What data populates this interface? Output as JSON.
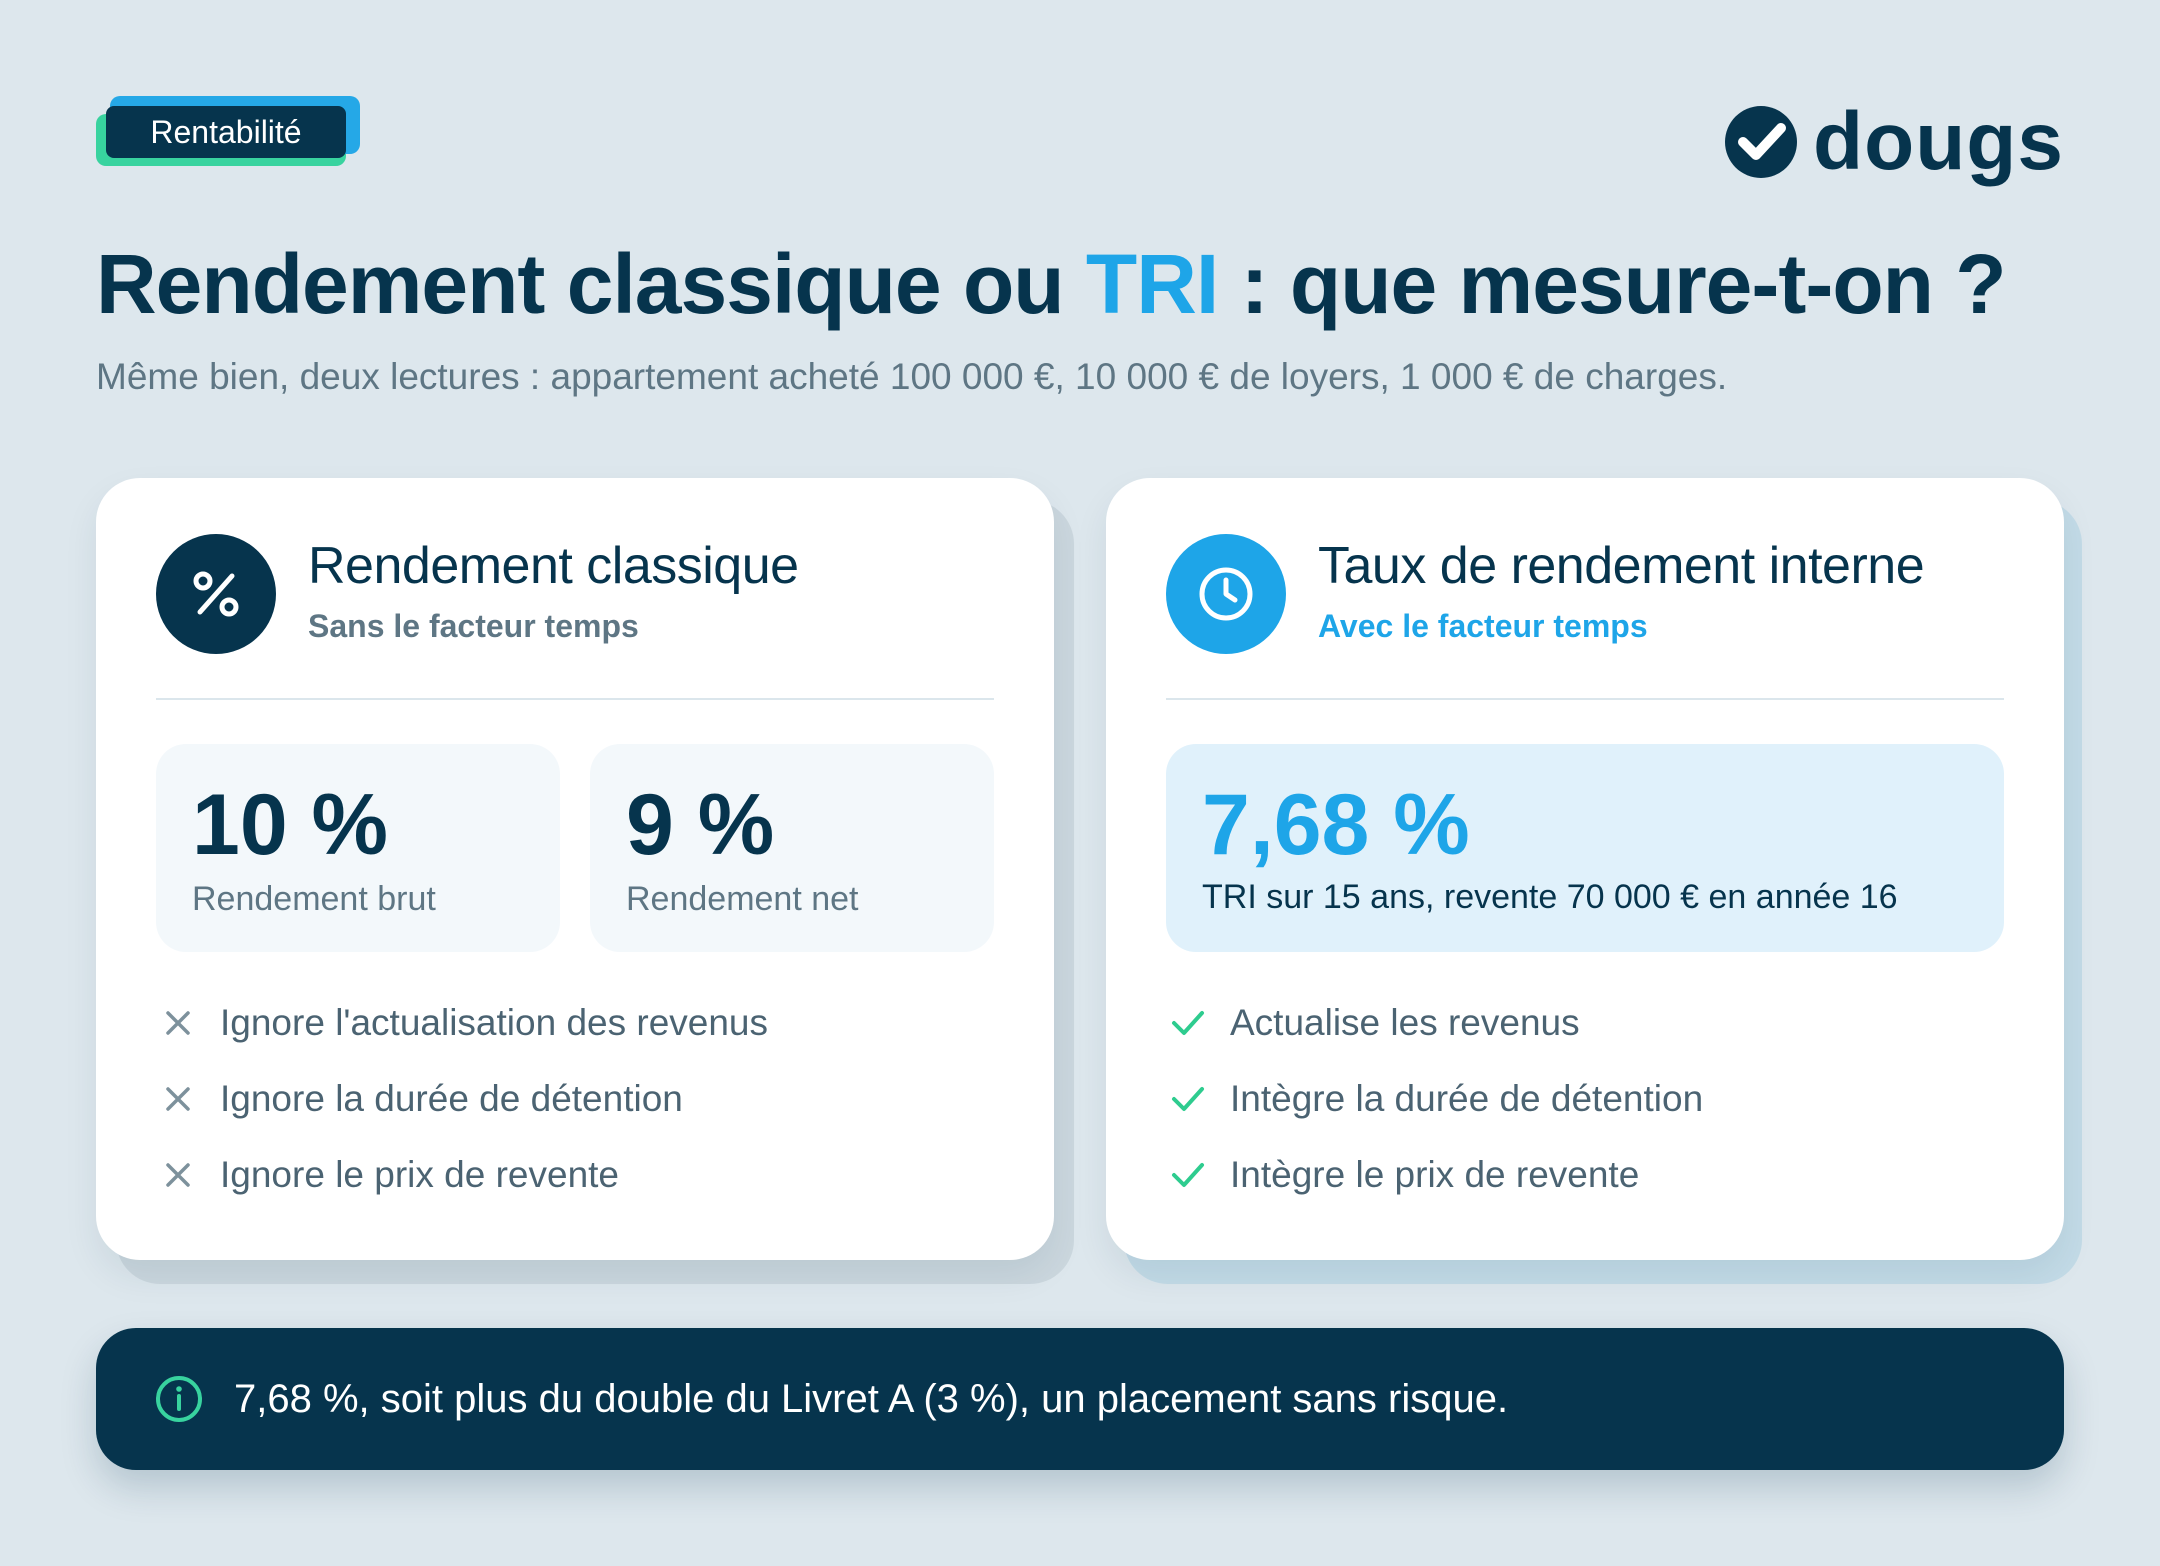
{
  "tag": {
    "label": "Rentabilité"
  },
  "logo": {
    "text": "dougs"
  },
  "header": {
    "title_part1": "Rendement classique ou ",
    "title_accent": "TRI",
    "title_part2": " : que mesure-t-on ?",
    "subtitle": "Même bien, deux lectures : appartement acheté 100 000 €, 10 000 € de loyers, 1 000 € de charges."
  },
  "left_card": {
    "icon": "percent-icon",
    "title": "Rendement classique",
    "subtitle": "Sans le facteur temps",
    "stats": [
      {
        "value": "10 %",
        "label": "Rendement brut"
      },
      {
        "value": "9 %",
        "label": "Rendement net"
      }
    ],
    "items": [
      "Ignore l'actualisation des revenus",
      "Ignore la durée de détention",
      "Ignore le prix de revente"
    ]
  },
  "right_card": {
    "icon": "clock-icon",
    "title": "Taux de rendement interne",
    "subtitle": "Avec le facteur temps",
    "stat": {
      "value": "7,68 %",
      "label": "TRI sur 15 ans, revente 70 000 € en année 16"
    },
    "items": [
      "Actualise les revenus",
      "Intègre la durée de détention",
      "Intègre le prix de revente"
    ]
  },
  "banner": {
    "icon": "info-icon",
    "text": "7,68 %, soit plus du double du Livret A (3 %), un placement sans risque."
  },
  "colors": {
    "navy": "#06344d",
    "blue": "#1ea5e8",
    "green": "#38d39f",
    "background": "#dde7ed"
  }
}
